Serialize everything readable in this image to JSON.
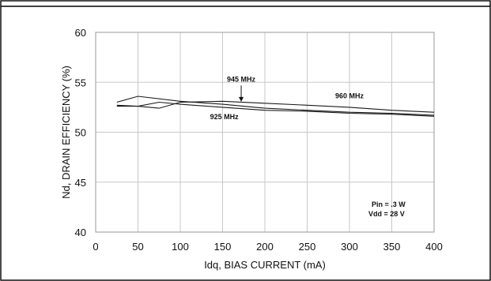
{
  "chart_data": {
    "type": "line",
    "title": "",
    "xlabel": "Idq, BIAS CURRENT  (mA)",
    "ylabel": "Nd, DRAIN EFFICIENCY  (%)",
    "xlim": [
      0,
      400
    ],
    "ylim": [
      40,
      60
    ],
    "xticks": [
      0,
      50,
      100,
      150,
      200,
      250,
      300,
      350,
      400
    ],
    "yticks": [
      40,
      45,
      50,
      55,
      60
    ],
    "grid": true,
    "legend": "none",
    "series": [
      {
        "points": [
          [
            25,
            52.6
          ],
          [
            50,
            52.6
          ],
          [
            75,
            52.4
          ],
          [
            100,
            53.0
          ],
          [
            150,
            53.1
          ],
          [
            200,
            52.9
          ],
          [
            250,
            52.7
          ],
          [
            300,
            52.5
          ],
          [
            350,
            52.2
          ],
          [
            400,
            52.0
          ]
        ]
      },
      {
        "points": [
          [
            25,
            53.0
          ],
          [
            50,
            53.6
          ],
          [
            100,
            53.1
          ],
          [
            150,
            52.8
          ],
          [
            200,
            52.4
          ],
          [
            250,
            52.2
          ],
          [
            300,
            52.0
          ],
          [
            350,
            51.9
          ],
          [
            400,
            51.7
          ]
        ]
      },
      {
        "points": [
          [
            25,
            52.7
          ],
          [
            50,
            52.6
          ],
          [
            75,
            53.0
          ],
          [
            100,
            52.8
          ],
          [
            150,
            52.5
          ],
          [
            200,
            52.2
          ],
          [
            250,
            52.1
          ],
          [
            300,
            51.9
          ],
          [
            350,
            51.8
          ],
          [
            400,
            51.6
          ]
        ]
      }
    ],
    "annotations": [
      {
        "text": "945 MHz",
        "x": 172,
        "y": 55.0,
        "arrow_to": [
          172,
          53.05
        ]
      },
      {
        "text": "960 MHz",
        "x": 300,
        "y": 53.4
      },
      {
        "text": "925 MHz",
        "x": 152,
        "y": 51.3
      }
    ],
    "conditions": [
      "Pin = .3 W",
      "Vdd = 28 V"
    ]
  }
}
